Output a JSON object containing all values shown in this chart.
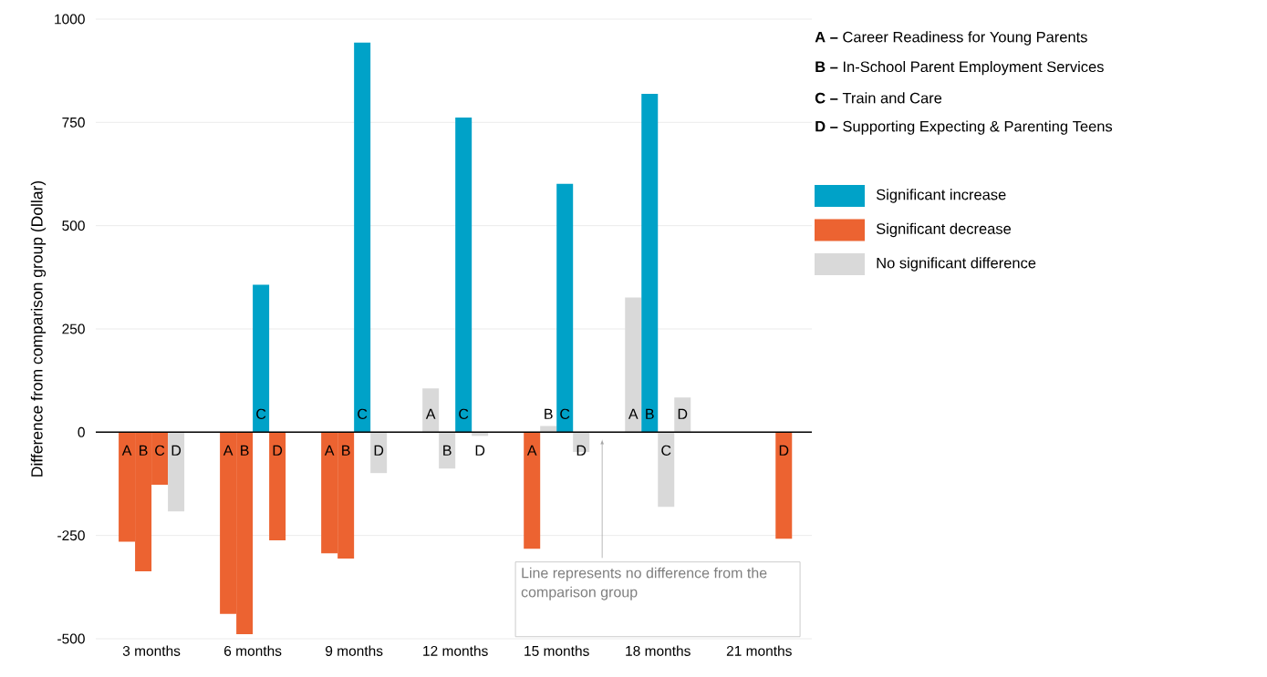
{
  "chart_data": {
    "type": "bar",
    "ylabel": "Difference from comparison group (Dollar)",
    "categories": [
      "3 months",
      "6 months",
      "9 months",
      "12 months",
      "15 months",
      "18 months",
      "21 months"
    ],
    "series": [
      {
        "name": "A",
        "values": [
          -265,
          -440,
          -293,
          106,
          -282,
          326,
          null
        ],
        "colors": [
          "#ec6331",
          "#ec6331",
          "#ec6331",
          "#d9d9d9",
          "#ec6331",
          "#d9d9d9",
          null
        ]
      },
      {
        "name": "B",
        "values": [
          -337,
          -489,
          -306,
          -88,
          15,
          819,
          null
        ],
        "colors": [
          "#ec6331",
          "#ec6331",
          "#ec6331",
          "#d9d9d9",
          "#d9d9d9",
          "#00a2c8",
          null
        ]
      },
      {
        "name": "C",
        "values": [
          -127,
          357,
          943,
          762,
          601,
          -181,
          null
        ],
        "colors": [
          "#ec6331",
          "#00a2c8",
          "#00a2c8",
          "#00a2c8",
          "#00a2c8",
          "#d9d9d9",
          null
        ]
      },
      {
        "name": "D",
        "values": [
          -192,
          -262,
          -99,
          -9,
          -48,
          84,
          -258
        ],
        "colors": [
          "#d9d9d9",
          "#ec6331",
          "#d9d9d9",
          "#d9d9d9",
          "#d9d9d9",
          "#d9d9d9",
          "#ec6331"
        ]
      },
      {
        "name": "Significant increase",
        "color": "#00a2c8",
        "values": [
          null,
          null,
          null,
          null,
          null,
          null,
          null
        ]
      },
      {
        "name": "Significant decrease",
        "color": "#ec6331",
        "values": [
          null,
          null,
          null,
          null,
          null,
          null,
          null
        ]
      },
      {
        "name": "No significant difference",
        "color": "#d9d9d9",
        "values": [
          null,
          null,
          null,
          null,
          null,
          null,
          null
        ]
      }
    ],
    "ylim": [
      -500,
      1000
    ],
    "yticks": [
      -500,
      -250,
      0,
      250,
      500,
      750,
      1000
    ],
    "grid": "y",
    "legend": "right",
    "ref_lines": [
      {
        "axis": "y",
        "value": 0,
        "color": "#000000"
      }
    ],
    "annotations": [
      "**A –** Career Readiness for Young Parents",
      "**B –** In-School Parent Employment Services",
      "**C –** Train and Care",
      "**D –** Supporting Expecting & Parenting Teens",
      "Line represents no difference from the comparison group"
    ]
  }
}
